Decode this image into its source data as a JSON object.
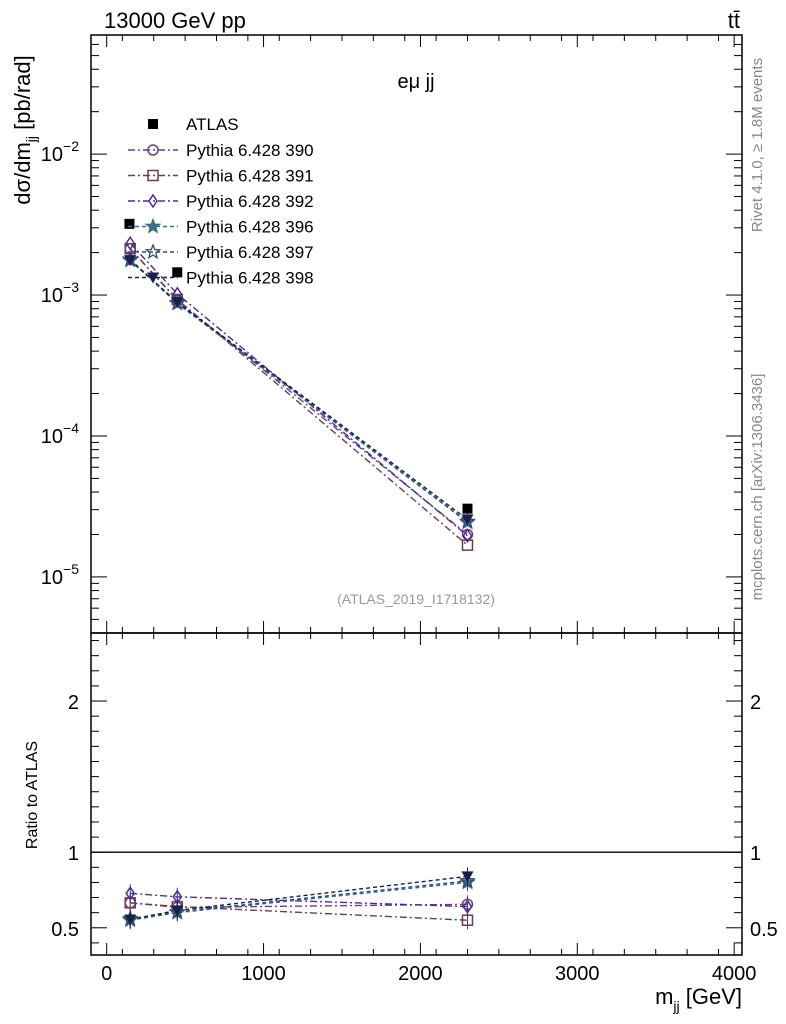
{
  "header": {
    "left_label": "13000 GeV pp",
    "right_label": "tt̄"
  },
  "side_labels": {
    "rivet": "Rivet 4.1.0, ≥ 1.8M events",
    "source": "mcplots.cern.ch [arXiv:1306.3436]"
  },
  "chart_data": {
    "type": "line",
    "title": "eμ jj",
    "analysis_label": "(ATLAS_2019_I1718132)",
    "xlabel": "m_jj [GeV]",
    "ylabel": "dσ/dm_jj [pb/rad]",
    "ratio_ylabel": "Ratio to ATLAS",
    "xlim": [
      -100,
      4050
    ],
    "ylim_log": [
      4e-06,
      0.07
    ],
    "ratio_ylim": [
      0.32,
      2.45
    ],
    "x_ticks": [
      0,
      1000,
      2000,
      3000,
      4000
    ],
    "x": [
      150,
      450,
      2300
    ],
    "data": {
      "name": "ATLAS",
      "values": [
        0.0032,
        0.00145,
        3.05e-05
      ]
    },
    "series": [
      {
        "name": "Pythia 6.428 390",
        "color": "#6b3f85",
        "marker": "circle-open",
        "dash": "7,3,2,3",
        "values": [
          0.00213,
          0.00092,
          2e-05
        ],
        "ratio": [
          0.665,
          0.635,
          0.655
        ]
      },
      {
        "name": "Pythia 6.428 391",
        "color": "#6a3d52",
        "marker": "square-open",
        "dash": "7,3,2,3",
        "values": [
          0.00213,
          0.00093,
          1.68e-05
        ],
        "ratio": [
          0.665,
          0.64,
          0.55
        ]
      },
      {
        "name": "Pythia 6.428 392",
        "color": "#4b2d8a",
        "marker": "diamond-open",
        "dash": "7,3,2,3",
        "values": [
          0.00233,
          0.00102,
          1.96e-05
        ],
        "ratio": [
          0.728,
          0.705,
          0.64
        ]
      },
      {
        "name": "Pythia 6.428 396",
        "color": "#3f6f88",
        "marker": "star-filled",
        "dash": "4,3",
        "values": [
          0.00176,
          0.00087,
          2.44e-05
        ],
        "ratio": [
          0.55,
          0.6,
          0.8
        ]
      },
      {
        "name": "Pythia 6.428 397",
        "color": "#2e4e73",
        "marker": "star-open",
        "dash": "4,3",
        "values": [
          0.00179,
          0.00088,
          2.47e-05
        ],
        "ratio": [
          0.56,
          0.605,
          0.81
        ]
      },
      {
        "name": "Pythia 6.428 398",
        "color": "#1b1f4a",
        "marker": "triangle-down",
        "dash": "4,3",
        "values": [
          0.00177,
          0.00089,
          2.56e-05
        ],
        "ratio": [
          0.555,
          0.615,
          0.84
        ]
      }
    ]
  }
}
